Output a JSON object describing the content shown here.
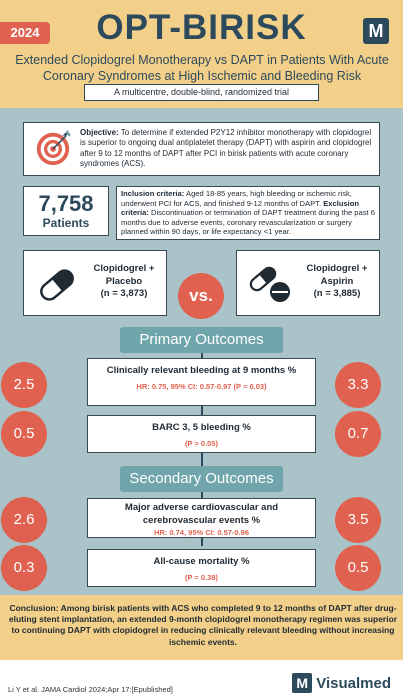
{
  "header": {
    "year": "2024",
    "title": "OPT-BIRISK",
    "logo_letter": "M",
    "subtitle": "Extended Clopidogrel Monotherapy vs DAPT in Patients With Acute Coronary Syndromes at High Ischemic and Bleeding Risk",
    "design": "A multicentre, double-blind, randomized trial"
  },
  "objective": {
    "label": "Objective:",
    "text": "To determine if extended P2Y12 inhibitor monotherapy with clopidogrel is superior to ongoing dual antiplatelet therapy (DAPT) with aspirin and clopidogrel after 9 to 12 months of DAPT after PCI in birisk patients with acute coronary syndromes (ACS)."
  },
  "patients": {
    "count": "7,758",
    "label": "Patients"
  },
  "criteria": {
    "inclusion_label": "Inclusion criteria:",
    "inclusion_text": "Aged 18-85 years, high bleeding or ischemic risk, underwent PCI for ACS, and finished 9-12 months of DAPT.",
    "exclusion_label": "Exclusion criteria:",
    "exclusion_text": "Discontinuation or termination of DAPT treatment during the past 6 months due to adverse events, coronary revascularization or surgery planned within 90 days, or life expectancy <1 year."
  },
  "arms": {
    "left": {
      "line1": "Clopidogrel +",
      "line2": "Placebo",
      "n": "(n = 3,873)"
    },
    "vs": "vs.",
    "right": {
      "line1": "Clopidogrel +",
      "line2": "Aspirin",
      "n": "(n = 3,885)"
    }
  },
  "primary": {
    "header": "Primary Outcomes",
    "outcomes": [
      {
        "title": "Clinically relevant bleeding at 9 months %",
        "stat": "HR: 0.75, 95% CI: 0.57-0.97 (P = 0.03)",
        "left": "2.5",
        "right": "3.3"
      },
      {
        "title": "BARC 3, 5 bleeding %",
        "stat": "(P > 0.05)",
        "left": "0.5",
        "right": "0.7"
      }
    ]
  },
  "secondary": {
    "header": "Secondary Outcomes",
    "outcomes": [
      {
        "title": "Major adverse cardiovascular and cerebrovascular events %",
        "stat": "HR: 0.74, 95% CI: 0.57-0.96",
        "left": "2.6",
        "right": "3.5"
      },
      {
        "title": "All-cause mortality %",
        "stat": "(P = 0.38)",
        "left": "0.3",
        "right": "0.5"
      }
    ]
  },
  "conclusion": {
    "label": "Conclusion:",
    "text": "Among birisk patients with ACS who completed 9 to 12 months of DAPT after drug-eluting stent implantation, an extended 9-month clopidogrel monotherapy regimen was superior to continuing DAPT with clopidogrel in reducing clinically relevant bleeding without increasing ischemic events."
  },
  "footer": {
    "citation": "Li Y et al. JAMA Cardiol 2024;Apr 17:[Epublished]",
    "brand_letter": "M",
    "brand_name": "Visualmed"
  },
  "colors": {
    "accent": "#e0614f",
    "header_bg": "#f3d08a",
    "body_bg": "#a9c3c8",
    "navy": "#2d4a5c",
    "teal": "#6fa5ab"
  }
}
